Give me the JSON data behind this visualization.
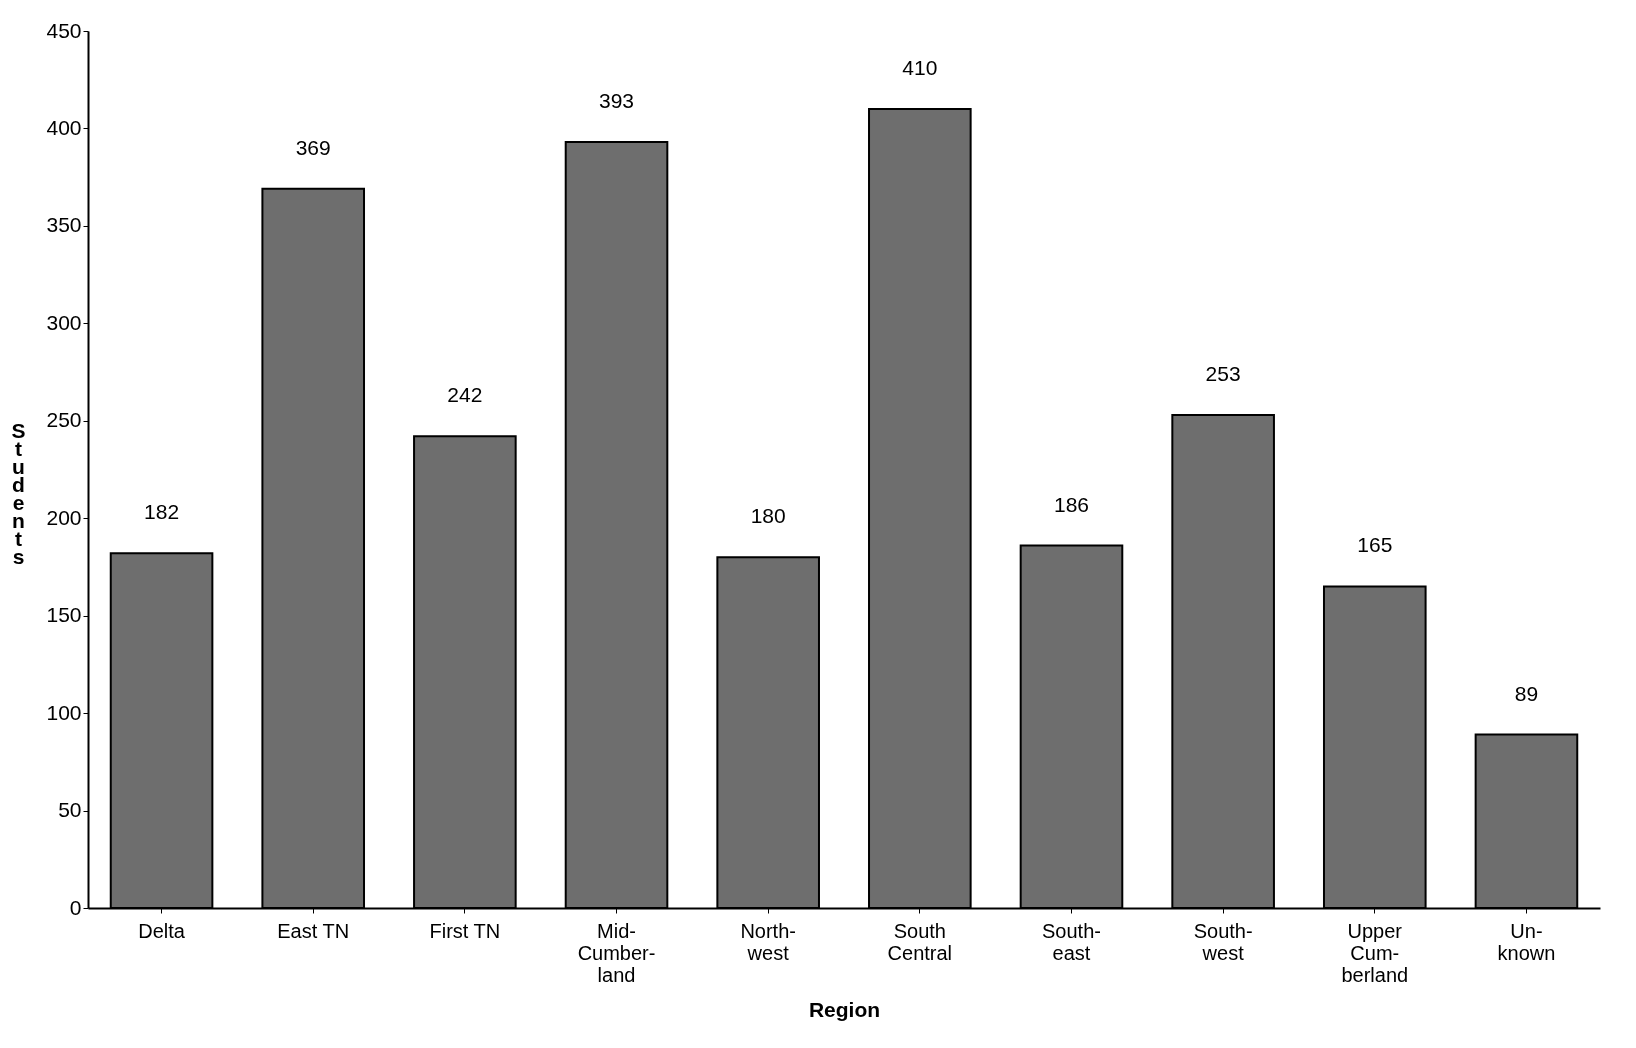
{
  "chart_data": {
    "type": "bar",
    "xlabel": "Region",
    "ylabel": "Students",
    "categories": [
      "Delta",
      "East TN",
      "First TN",
      "Mid-\nCumber-\nland",
      "North-\nwest",
      "South\nCentral",
      "South-\neast",
      "South-\nwest",
      "Upper\nCum-\nberland",
      "Un-\nknown"
    ],
    "values": [
      182,
      369,
      242,
      393,
      180,
      410,
      186,
      253,
      165,
      89
    ],
    "color": "#6e6e6e",
    "ylim": [
      0,
      450
    ],
    "yticks": [
      0,
      50,
      100,
      150,
      200,
      250,
      300,
      350,
      400,
      450
    ],
    "grid": false,
    "data_labels": true
  }
}
